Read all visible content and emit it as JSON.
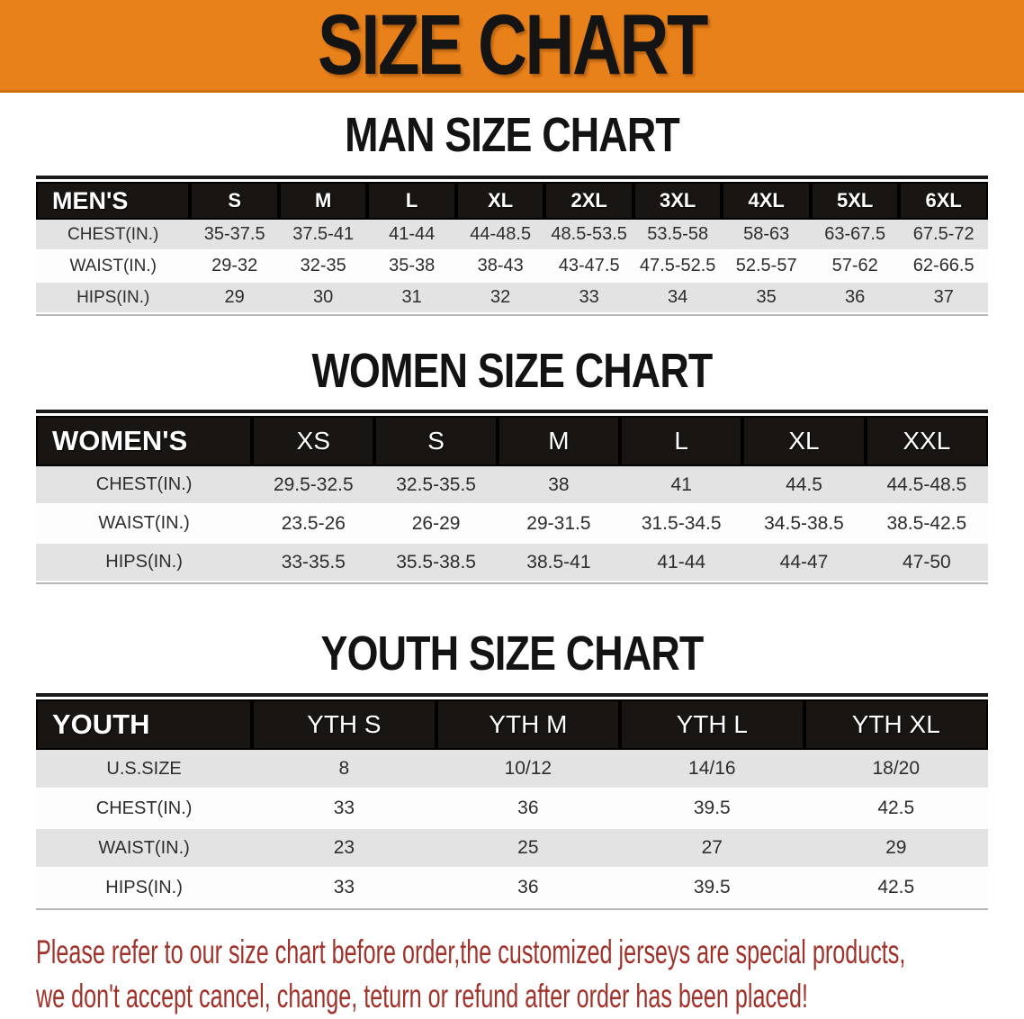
{
  "banner": {
    "title": "SIZE CHART"
  },
  "colors": {
    "banner_bg": "#e8811a",
    "table_header_bg": "#181512",
    "row_stripe_gray": "#e3e3e3",
    "row_white": "#fdfdfd",
    "footer_red": "#a0322a",
    "heading_black": "#131313"
  },
  "chart_data": [
    {
      "type": "table",
      "title": "MAN SIZE CHART",
      "header_label": "MEN'S",
      "columns": [
        "S",
        "M",
        "L",
        "XL",
        "2XL",
        "3XL",
        "4XL",
        "5XL",
        "6XL"
      ],
      "rows": [
        {
          "label": "CHEST(IN.)",
          "values": [
            "35-37.5",
            "37.5-41",
            "41-44",
            "44-48.5",
            "48.5-53.5",
            "53.5-58",
            "58-63",
            "63-67.5",
            "67.5-72"
          ]
        },
        {
          "label": "WAIST(IN.)",
          "values": [
            "29-32",
            "32-35",
            "35-38",
            "38-43",
            "43-47.5",
            "47.5-52.5",
            "52.5-57",
            "57-62",
            "62-66.5"
          ]
        },
        {
          "label": "HIPS(IN.)",
          "values": [
            "29",
            "30",
            "31",
            "32",
            "33",
            "34",
            "35",
            "36",
            "37"
          ]
        }
      ]
    },
    {
      "type": "table",
      "title": "WOMEN SIZE CHART",
      "header_label": "WOMEN'S",
      "columns": [
        "XS",
        "S",
        "M",
        "L",
        "XL",
        "XXL"
      ],
      "rows": [
        {
          "label": "CHEST(IN.)",
          "values": [
            "29.5-32.5",
            "32.5-35.5",
            "38",
            "41",
            "44.5",
            "44.5-48.5"
          ]
        },
        {
          "label": "WAIST(IN.)",
          "values": [
            "23.5-26",
            "26-29",
            "29-31.5",
            "31.5-34.5",
            "34.5-38.5",
            "38.5-42.5"
          ]
        },
        {
          "label": "HIPS(IN.)",
          "values": [
            "33-35.5",
            "35.5-38.5",
            "38.5-41",
            "41-44",
            "44-47",
            "47-50"
          ]
        }
      ]
    },
    {
      "type": "table",
      "title": "YOUTH SIZE CHART",
      "header_label": "YOUTH",
      "columns": [
        "YTH S",
        "YTH M",
        "YTH L",
        "YTH XL"
      ],
      "rows": [
        {
          "label": "U.S.SIZE",
          "values": [
            "8",
            "10/12",
            "14/16",
            "18/20"
          ]
        },
        {
          "label": "CHEST(IN.)",
          "values": [
            "33",
            "36",
            "39.5",
            "42.5"
          ]
        },
        {
          "label": "WAIST(IN.)",
          "values": [
            "23",
            "25",
            "27",
            "29"
          ]
        },
        {
          "label": "HIPS(IN.)",
          "values": [
            "33",
            "36",
            "39.5",
            "42.5"
          ]
        }
      ]
    }
  ],
  "footer": {
    "line1": "Please refer to our size chart before order,the customized jerseys are special products,",
    "line2": "we don't accept cancel, change, teturn or refund after order has been placed!"
  }
}
